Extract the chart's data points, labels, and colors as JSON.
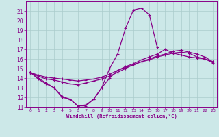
{
  "xlabel": "Windchill (Refroidissement éolien,°C)",
  "bg_color": "#cce8e8",
  "grid_color": "#aacccc",
  "line_color": "#880088",
  "x_hours": [
    0,
    1,
    2,
    3,
    4,
    5,
    6,
    7,
    8,
    9,
    10,
    11,
    12,
    13,
    14,
    15,
    16,
    17,
    18,
    19,
    20,
    21,
    22,
    23
  ],
  "line1": [
    14.6,
    14.0,
    13.5,
    13.0,
    12.0,
    11.8,
    11.1,
    11.1,
    11.8,
    13.0,
    15.0,
    16.5,
    19.2,
    21.1,
    21.3,
    20.6,
    17.2,
    null,
    null,
    null,
    null,
    null,
    null,
    null
  ],
  "line2": [
    14.6,
    13.9,
    13.4,
    13.0,
    12.1,
    11.8,
    11.1,
    11.2,
    11.8,
    13.0,
    14.0,
    14.8,
    15.2,
    15.5,
    15.9,
    16.2,
    16.5,
    17.0,
    16.6,
    16.4,
    16.2,
    16.1,
    16.0,
    15.7
  ],
  "line3": [
    14.6,
    14.2,
    13.9,
    13.8,
    13.6,
    13.4,
    13.3,
    13.5,
    13.7,
    13.9,
    14.2,
    14.6,
    15.0,
    15.4,
    15.7,
    15.9,
    16.2,
    16.4,
    16.6,
    16.7,
    16.6,
    16.2,
    16.0,
    15.6
  ],
  "line4": [
    14.6,
    14.3,
    14.1,
    14.0,
    13.9,
    13.8,
    13.7,
    13.8,
    13.9,
    14.1,
    14.4,
    14.8,
    15.1,
    15.4,
    15.7,
    16.0,
    16.3,
    16.5,
    16.8,
    16.9,
    16.7,
    16.5,
    16.2,
    15.7
  ],
  "ylim": [
    11,
    22
  ],
  "yticks": [
    11,
    12,
    13,
    14,
    15,
    16,
    17,
    18,
    19,
    20,
    21
  ],
  "xlim": [
    -0.5,
    23.5
  ],
  "xticks": [
    0,
    1,
    2,
    3,
    4,
    5,
    6,
    7,
    8,
    9,
    10,
    11,
    12,
    13,
    14,
    15,
    16,
    17,
    18,
    19,
    20,
    21,
    22,
    23
  ]
}
